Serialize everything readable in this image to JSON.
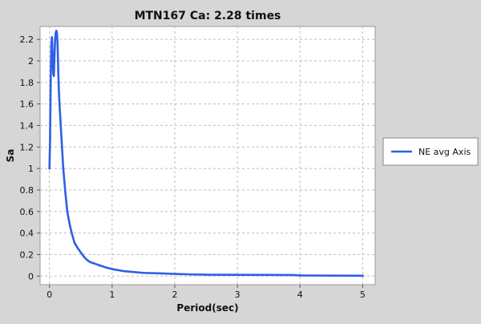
{
  "chart_data": {
    "type": "line",
    "title": "MTN167 Ca: 2.28 times",
    "xlabel": "Period(sec)",
    "ylabel": "Sa",
    "xlim": [
      -0.15,
      5.2
    ],
    "ylim": [
      -0.08,
      2.32
    ],
    "x_ticks": [
      "0",
      "1",
      "2",
      "3",
      "4",
      "5"
    ],
    "y_ticks": [
      "0",
      "0.2",
      "0.4",
      "0.6",
      "0.8",
      "1",
      "1.2",
      "1.4",
      "1.6",
      "1.8",
      "2",
      "2.2"
    ],
    "grid": true,
    "legend_placement": "right",
    "series": [
      {
        "name": "NE avg Axis",
        "color": "#2f5fe6",
        "x": [
          0.0,
          0.01,
          0.02,
          0.03,
          0.04,
          0.05,
          0.06,
          0.07,
          0.08,
          0.09,
          0.1,
          0.11,
          0.12,
          0.13,
          0.14,
          0.15,
          0.16,
          0.18,
          0.2,
          0.22,
          0.25,
          0.28,
          0.3,
          0.33,
          0.36,
          0.4,
          0.45,
          0.5,
          0.55,
          0.6,
          0.65,
          0.7,
          0.8,
          0.9,
          1.0,
          1.2,
          1.5,
          1.8,
          2.0,
          2.3,
          2.5,
          3.0,
          3.5,
          3.9,
          4.0,
          4.5,
          5.0
        ],
        "y": [
          1.0,
          1.3,
          1.85,
          2.15,
          2.22,
          2.05,
          1.88,
          1.86,
          2.05,
          2.2,
          2.26,
          2.28,
          2.25,
          2.15,
          1.9,
          1.72,
          1.6,
          1.4,
          1.2,
          1.0,
          0.8,
          0.62,
          0.55,
          0.46,
          0.39,
          0.31,
          0.26,
          0.22,
          0.18,
          0.15,
          0.13,
          0.12,
          0.1,
          0.08,
          0.065,
          0.045,
          0.03,
          0.025,
          0.02,
          0.015,
          0.013,
          0.012,
          0.011,
          0.01,
          0.006,
          0.004,
          0.003
        ]
      }
    ]
  }
}
